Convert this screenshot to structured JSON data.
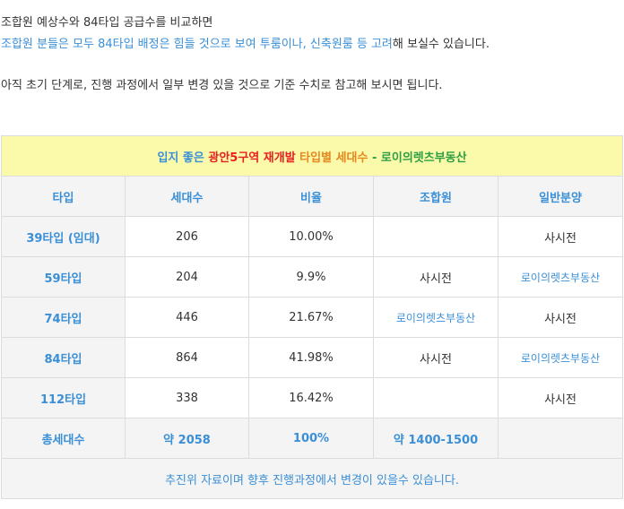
{
  "intro": {
    "line1": "조합원 예상수와 84타입 공급수를 비교하면",
    "line2_blue": "조합원 분들은 모두 84타입 배정은 힘들 것으로 보여 투룸이나, 신축원룸 등 고려",
    "line2_rest": "해 보실수 있습니다.",
    "line3": "아직 초기 단계로, 진행 과정에서 일부 변경 있을 것으로 기준 수치로 참고해 보시면 됩니다."
  },
  "table": {
    "title": {
      "part1": "입지 좋은 ",
      "part2": "광안5구역 재개발",
      "part3": " 타입별 세대수",
      "part4": " - 로이의렛츠부동산"
    },
    "headers": [
      "타입",
      "세대수",
      "비율",
      "조합원",
      "일반분양"
    ],
    "rows": [
      {
        "type": "39타입 (임대)",
        "units": "206",
        "ratio": "10.00%",
        "member": "",
        "general": "사시전"
      },
      {
        "type": "59타입",
        "units": "204",
        "ratio": "9.9%",
        "member": "사시전",
        "general": "로이의렛츠부동산"
      },
      {
        "type": "74타입",
        "units": "446",
        "ratio": "21.67%",
        "member": "로이의렛츠부동산",
        "general": "사시전"
      },
      {
        "type": "84타입",
        "units": "864",
        "ratio": "41.98%",
        "member": "사시전",
        "general": "로이의렛츠부동산"
      },
      {
        "type": "112타입",
        "units": "338",
        "ratio": "16.42%",
        "member": "",
        "general": "사시전"
      }
    ],
    "total": {
      "label": "총세대수",
      "units": "약 2058",
      "ratio": "100%",
      "member": "약 1400-1500",
      "general": ""
    },
    "note": "추진위 자료이며 향후 진행과정에서 변경이 있을수 있습니다."
  }
}
